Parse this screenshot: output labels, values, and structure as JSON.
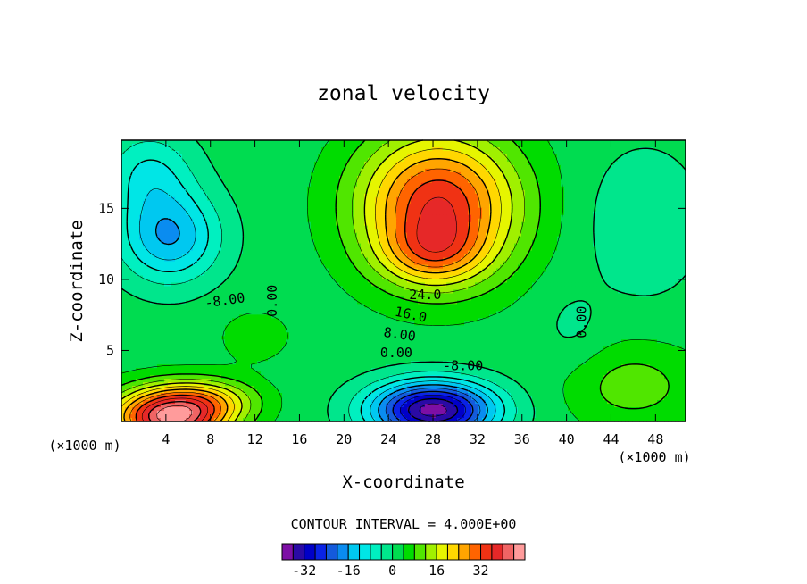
{
  "chart_data": {
    "type": "contour",
    "title": "zonal velocity",
    "xlabel": "X-coordinate",
    "ylabel": "Z-coordinate",
    "x_unit_left": "(×1000 m)",
    "x_unit_right": "(×1000 m)",
    "xlim": [
      0,
      50.7
    ],
    "ylim": [
      0,
      19.8
    ],
    "x_ticks": [
      4,
      8,
      12,
      16,
      20,
      24,
      28,
      32,
      36,
      40,
      44,
      48
    ],
    "y_ticks": [
      5,
      10,
      15
    ],
    "contour_interval_label": "CONTOUR INTERVAL = 4.000E+00",
    "contour_interval": 4,
    "contour_labels": [
      {
        "text": "-8.00",
        "x": 9.3,
        "y": 8.5,
        "angle": -8
      },
      {
        "text": "0.00",
        "x": 13.6,
        "y": 8.5,
        "angle": -90
      },
      {
        "text": "24.0",
        "x": 27.3,
        "y": 8.9,
        "angle": 0
      },
      {
        "text": "16.0",
        "x": 26.0,
        "y": 7.5,
        "angle": 12
      },
      {
        "text": "8.00",
        "x": 25.0,
        "y": 6.1,
        "angle": 8
      },
      {
        "text": "0.00",
        "x": 24.7,
        "y": 4.8,
        "angle": 0
      },
      {
        "text": "-8.00",
        "x": 30.7,
        "y": 3.9,
        "angle": 0
      },
      {
        "text": "0.00",
        "x": 41.4,
        "y": 7.0,
        "angle": -90
      }
    ],
    "field_centers": [
      {
        "x": 28.5,
        "y": 15.2,
        "value": 34,
        "sx": 7.0,
        "sy": 5.0
      },
      {
        "x": 28.0,
        "y": 11.8,
        "value": 12,
        "sx": 4.5,
        "sy": 2.2
      },
      {
        "x": 4.3,
        "y": 13.0,
        "value": -18,
        "sx": 4.5,
        "sy": 3.2
      },
      {
        "x": 2.5,
        "y": 17.5,
        "value": -10,
        "sx": 4.0,
        "sy": 3.0
      },
      {
        "x": 28.0,
        "y": 0.8,
        "value": -40,
        "sx": 5.5,
        "sy": 2.0
      },
      {
        "x": 4.3,
        "y": 0.3,
        "value": 42,
        "sx": 5.0,
        "sy": 2.0
      },
      {
        "x": 8.0,
        "y": 1.5,
        "value": 12,
        "sx": 4.5,
        "sy": 1.5
      },
      {
        "x": 46.0,
        "y": 2.5,
        "value": 8,
        "sx": 6.0,
        "sy": 3.0
      },
      {
        "x": 47.0,
        "y": 14.0,
        "value": -6,
        "sx": 5.0,
        "sy": 5.0
      },
      {
        "x": 40.5,
        "y": 6.5,
        "value": -3,
        "sx": 3.0,
        "sy": 3.0
      },
      {
        "x": 12.0,
        "y": 6.0,
        "value": 4,
        "sx": 3.5,
        "sy": 2.0
      }
    ],
    "colorbar": {
      "colors": [
        "#7d0fa5",
        "#2a0aa5",
        "#0000c8",
        "#0a23e6",
        "#145adc",
        "#0a8cf0",
        "#00c8f0",
        "#00e6e6",
        "#00f0c0",
        "#00e68c",
        "#00dc50",
        "#00dc00",
        "#50e600",
        "#a0f000",
        "#e6f500",
        "#ffd700",
        "#ffa500",
        "#ff6400",
        "#f03214",
        "#e62828",
        "#f06464",
        "#ff9b9b"
      ],
      "start": -40,
      "step": 4,
      "tick_labels": [
        "-32",
        "-16",
        "0",
        "16",
        "32"
      ],
      "tick_values": [
        -32,
        -16,
        0,
        16,
        32
      ]
    }
  }
}
